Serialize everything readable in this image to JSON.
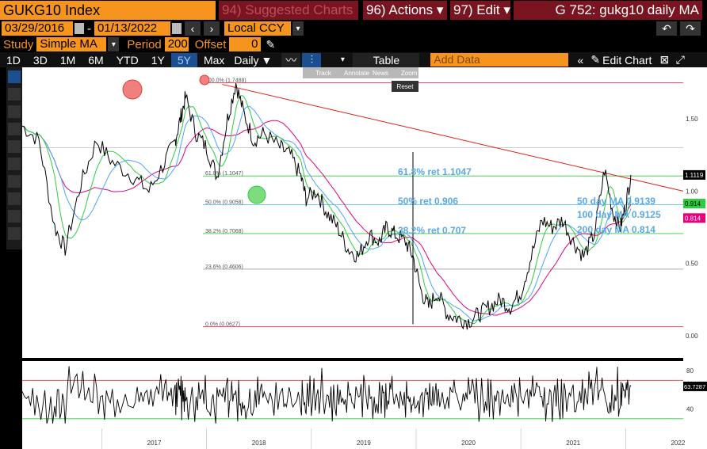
{
  "header": {
    "ticker": "GUKG10 Index",
    "suggested": "94) Suggested Charts",
    "actions": "96) Actions",
    "edit": "97) Edit",
    "title": "G 752: gukg10 daily MA"
  },
  "range": {
    "start": "03/29/2016",
    "end": "01/13/2022",
    "currency": "Local CCY"
  },
  "study": {
    "label": "Study",
    "value": "Simple MA",
    "period_label": "Period",
    "period_value": "200",
    "offset_label": "Offset",
    "offset_value": "0"
  },
  "toolbar": {
    "periods": [
      "1D",
      "3D",
      "1M",
      "6M",
      "YTD",
      "1Y",
      "5Y",
      "Max"
    ],
    "active_period": "5Y",
    "frequency": "Daily",
    "table": "Table",
    "add_data": "Add Data",
    "edit_chart": "Edit Chart"
  },
  "tooltip": {
    "items": [
      "Track",
      "Annotate",
      "News",
      "Zoom"
    ],
    "reset": "Reset"
  },
  "chart_data": {
    "type": "line",
    "y_ticks": [
      "1.50",
      "1.00",
      "0.50",
      "0.00"
    ],
    "x_ticks": [
      "2017",
      "2018",
      "2019",
      "2020",
      "2021",
      "2022"
    ],
    "lower_y_ticks": [
      "80",
      "40"
    ],
    "fib_levels": [
      {
        "label": "100.0% (1.7488)",
        "value": 1.7488
      },
      {
        "label": "61.8% (1.1047)",
        "value": 1.1047
      },
      {
        "label": "50.0% (0.9058)",
        "value": 0.9058
      },
      {
        "label": "38.2% (0.7068)",
        "value": 0.7068
      },
      {
        "label": "23.6% (0.4606)",
        "value": 0.4606
      },
      {
        "label": "0.0% (0.0627)",
        "value": 0.0627
      }
    ],
    "annotations": {
      "ret618": "61.8% ret 1.1047",
      "ret50": "50% ret 0.906",
      "ret382": "38.2% ret 0.707",
      "ma50": "50 day MA 0.9139",
      "ma100": "100 day MA 0.9125",
      "ma200": "200 day MA 0.814"
    },
    "last_labels": {
      "price": "1.1119",
      "ma50": "0.914",
      "ma200": "0.814",
      "rsi": "63.7287"
    },
    "colors": {
      "price": "#000000",
      "ma50": "#2ecc40",
      "ma100": "#4da3ff",
      "ma200": "#e6007e",
      "trend": "#e02020",
      "annot": "#5aa9e6"
    }
  }
}
